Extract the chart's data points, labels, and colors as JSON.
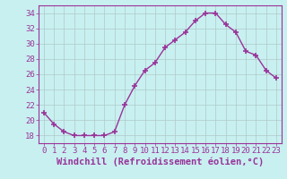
{
  "x": [
    0,
    1,
    2,
    3,
    4,
    5,
    6,
    7,
    8,
    9,
    10,
    11,
    12,
    13,
    14,
    15,
    16,
    17,
    18,
    19,
    20,
    21,
    22,
    23
  ],
  "y": [
    21,
    19.5,
    18.5,
    18,
    18,
    18,
    18,
    18.5,
    22,
    24.5,
    26.5,
    27.5,
    29.5,
    30.5,
    31.5,
    33,
    34,
    34,
    32.5,
    31.5,
    29,
    28.5,
    26.5,
    25.5
  ],
  "line_color": "#993399",
  "marker": "+",
  "bg_color": "#c8f0f0",
  "grid_color": "#b0c8c8",
  "axis_color": "#993399",
  "xlabel": "Windchill (Refroidissement éolien,°C)",
  "xlim": [
    -0.5,
    23.5
  ],
  "ylim": [
    17,
    35
  ],
  "yticks": [
    18,
    20,
    22,
    24,
    26,
    28,
    30,
    32,
    34
  ],
  "xticks": [
    0,
    1,
    2,
    3,
    4,
    5,
    6,
    7,
    8,
    9,
    10,
    11,
    12,
    13,
    14,
    15,
    16,
    17,
    18,
    19,
    20,
    21,
    22,
    23
  ],
  "xlabel_fontsize": 7.5,
  "tick_fontsize": 6.5,
  "linewidth": 1.0,
  "markersize": 4,
  "markeredgewidth": 1.2
}
